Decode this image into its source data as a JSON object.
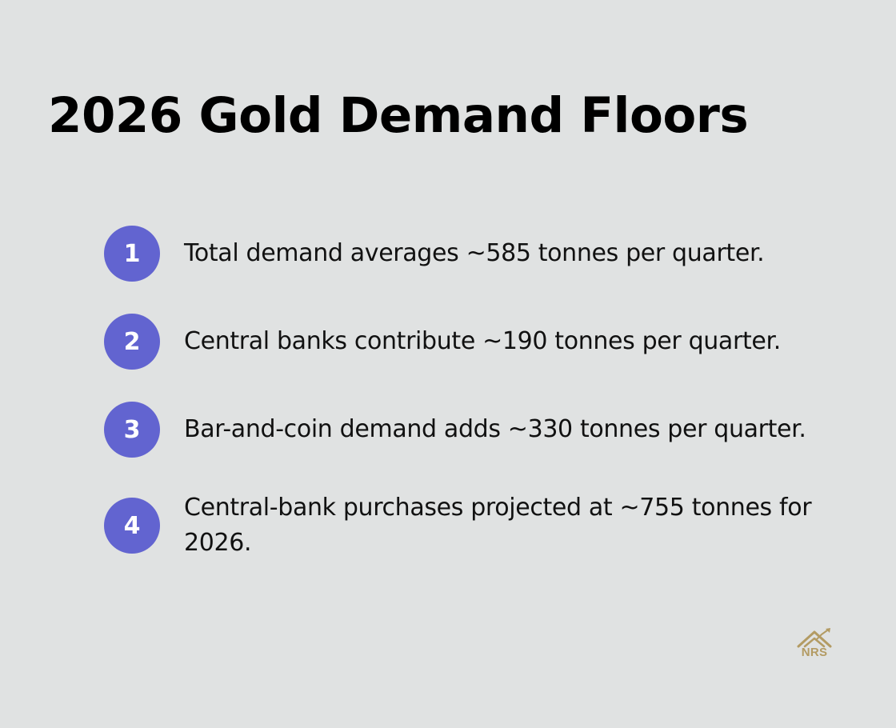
{
  "title": "2026 Gold Demand Floors",
  "colors": {
    "background": "#e0e2e2",
    "badge": "#6264d0",
    "badge_text": "#ffffff",
    "logo_gold": "#b39b63"
  },
  "steps": [
    {
      "number": "1",
      "text": "Total demand averages ~585 tonnes per quarter."
    },
    {
      "number": "2",
      "text": "Central banks contribute ~190 tonnes per quarter."
    },
    {
      "number": "3",
      "text": "Bar-and-coin demand adds ~330 tonnes per quarter."
    },
    {
      "number": "4",
      "text": "Central-bank purchases projected at ~755 tonnes for 2026."
    }
  ],
  "logo": {
    "icon": "house-chart-icon",
    "text": "NRS"
  }
}
